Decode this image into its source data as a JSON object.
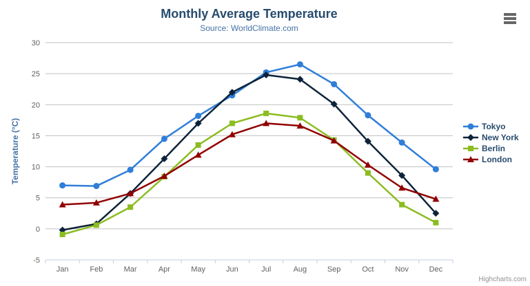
{
  "chart": {
    "title": "Monthly Average Temperature",
    "subtitle": "Source: WorldClimate.com",
    "credits": "Highcharts.com"
  },
  "icons": {
    "context_menu": "hamburger-menu-icon"
  },
  "colors": {
    "title_text": "#274b6d",
    "subtitle_text": "#4572A7",
    "axis_label_text": "#606060",
    "legend_text": "#274b6d",
    "gridline": "#C0C0C0",
    "axis_line": "#C0D0E0",
    "credits_text": "#909090",
    "menu_icon": "#666666"
  },
  "chart_data": {
    "type": "line",
    "title": "Monthly Average Temperature",
    "subtitle": "Source: WorldClimate.com",
    "categories": [
      "Jan",
      "Feb",
      "Mar",
      "Apr",
      "May",
      "Jun",
      "Jul",
      "Aug",
      "Sep",
      "Oct",
      "Nov",
      "Dec"
    ],
    "xlabel": "",
    "ylabel": "Temperature (°C)",
    "ylim": [
      -5,
      30
    ],
    "yticks": [
      -5,
      0,
      5,
      10,
      15,
      20,
      25,
      30
    ],
    "grid": true,
    "legend_position": "right",
    "series": [
      {
        "name": "Tokyo",
        "color": "#2f7ed8",
        "marker": "circle",
        "values": [
          7.0,
          6.9,
          9.5,
          14.5,
          18.2,
          21.5,
          25.2,
          26.5,
          23.3,
          18.3,
          13.9,
          9.6
        ]
      },
      {
        "name": "New York",
        "color": "#0d233a",
        "marker": "diamond",
        "values": [
          -0.2,
          0.8,
          5.7,
          11.3,
          17.0,
          22.0,
          24.8,
          24.1,
          20.1,
          14.1,
          8.6,
          2.5
        ]
      },
      {
        "name": "Berlin",
        "color": "#8bbc21",
        "marker": "square",
        "values": [
          -0.9,
          0.6,
          3.5,
          8.4,
          13.5,
          17.0,
          18.6,
          17.9,
          14.3,
          9.0,
          3.9,
          1.0
        ]
      },
      {
        "name": "London",
        "color": "#910000",
        "marker": "triangle",
        "values": [
          3.9,
          4.2,
          5.7,
          8.5,
          11.9,
          15.2,
          17.0,
          16.6,
          14.2,
          10.3,
          6.6,
          4.8
        ]
      }
    ]
  }
}
